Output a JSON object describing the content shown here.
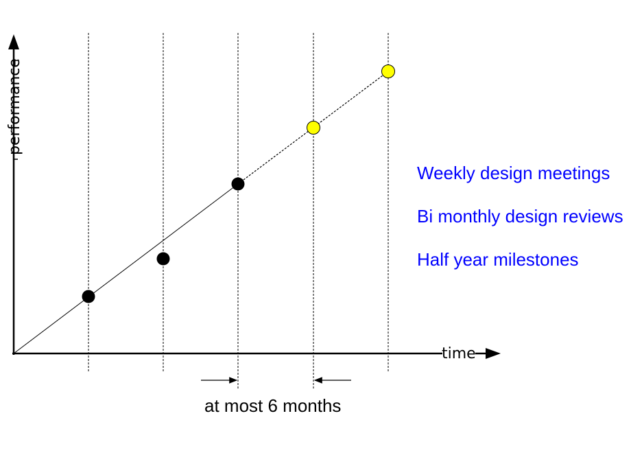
{
  "axes": {
    "x_label": "time",
    "y_label": "performance"
  },
  "markers": {
    "reached_color": "#000000",
    "planned_color": "#ffff00"
  },
  "interval": {
    "label": "at most 6 months"
  },
  "notes": [
    "Weekly design meetings",
    "Bi monthly design reviews",
    "Half year milestones"
  ],
  "colors": {
    "notes_text": "#0000ff"
  }
}
